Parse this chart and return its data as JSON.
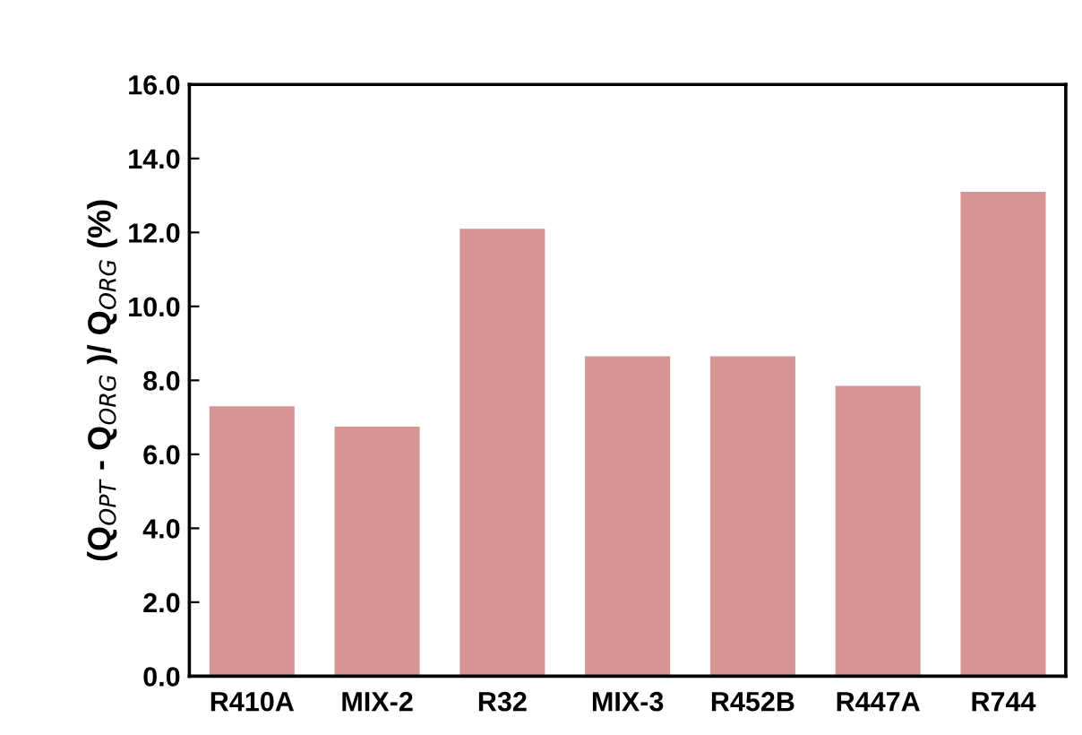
{
  "chart_data": {
    "type": "bar",
    "ylabel": "(Q$_{OPT}$ - Q$_{ORG}$ )/ Q$_{ORG}$ (%)",
    "categories": [
      "R410A",
      "MIX-2",
      "R32",
      "MIX-3",
      "R452B",
      "R447A",
      "R744"
    ],
    "values": [
      7.3,
      6.75,
      12.1,
      8.65,
      8.65,
      7.85,
      13.1
    ],
    "color": "#d69494",
    "ylim": [
      0,
      16
    ],
    "yticks": [
      {
        "value": 0,
        "label": "0.0"
      },
      {
        "value": 2,
        "label": "2.0"
      },
      {
        "value": 4,
        "label": "4.0"
      },
      {
        "value": 6,
        "label": "6.0"
      },
      {
        "value": 8,
        "label": "8.0"
      },
      {
        "value": 10,
        "label": "10.0"
      },
      {
        "value": 12,
        "label": "12.0"
      },
      {
        "value": 14,
        "label": "14.0"
      },
      {
        "value": 16,
        "label": "16.0"
      }
    ],
    "grid": false
  }
}
